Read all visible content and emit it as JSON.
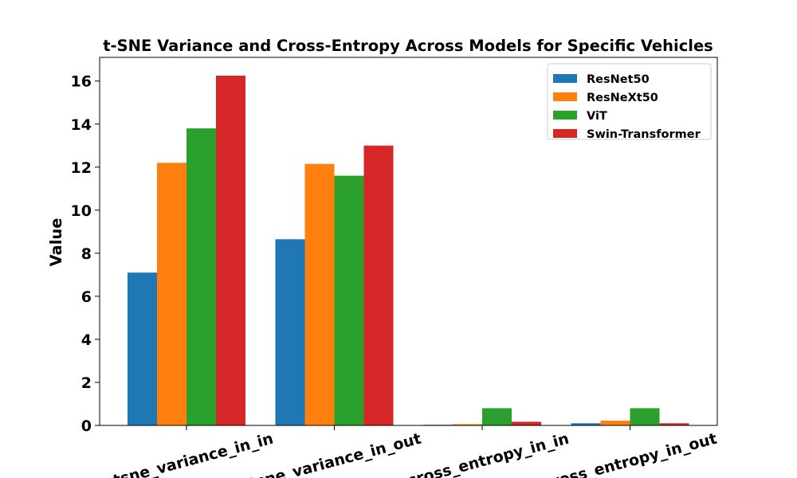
{
  "chart_data": {
    "type": "bar",
    "title": "t-SNE Variance and Cross-Entropy Across Models for Specific Vehicles",
    "xlabel": "",
    "ylabel": "Value",
    "ylim": [
      0,
      17.1
    ],
    "yticks": [
      0,
      2,
      4,
      6,
      8,
      10,
      12,
      14,
      16
    ],
    "categories": [
      "tsne_variance_in_in",
      "tsne_variance_in_out",
      "cross_entropy_in_in",
      "cross_entropy_in_out"
    ],
    "series": [
      {
        "name": "ResNet50",
        "color": "#1f77b4",
        "values": [
          7.1,
          8.65,
          0.03,
          0.1
        ]
      },
      {
        "name": "ResNeXt50",
        "color": "#ff7f0e",
        "values": [
          12.2,
          12.15,
          0.06,
          0.22
        ]
      },
      {
        "name": "ViT",
        "color": "#2ca02c",
        "values": [
          13.8,
          11.6,
          0.8,
          0.8
        ]
      },
      {
        "name": "Swin-Transformer",
        "color": "#d62728",
        "values": [
          16.25,
          13.0,
          0.17,
          0.1
        ]
      }
    ],
    "legend_position": "top-right",
    "grid": false
  }
}
